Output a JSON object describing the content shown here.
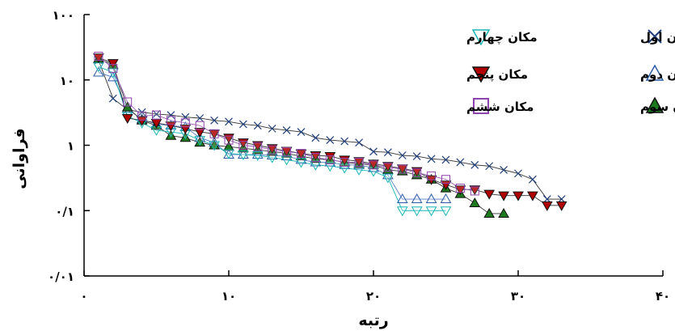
{
  "chart_data": {
    "type": "scatter",
    "title": "",
    "xlabel": "رتبه",
    "ylabel": "فراوانی",
    "xscale": "linear",
    "yscale": "log",
    "xlim": [
      0,
      40
    ],
    "ylim": [
      0.01,
      100
    ],
    "xticks": [
      0,
      10,
      20,
      30,
      40
    ],
    "xtick_labels": [
      "۰",
      "۱۰",
      "۲۰",
      "۳۰",
      "۴۰"
    ],
    "yticks": [
      0.01,
      0.1,
      1,
      10,
      100
    ],
    "ytick_labels": [
      "۰/۰۱",
      "۰/۱",
      "۱",
      "۱۰",
      "۱۰۰"
    ],
    "grid": false,
    "legend_position": "top-right",
    "series": [
      {
        "name": "مکان اول",
        "marker": "x",
        "color": "#1f3f7a",
        "line_color": "#333333",
        "points": [
          [
            1,
            20
          ],
          [
            2,
            5.2
          ],
          [
            3,
            3.5
          ],
          [
            4,
            3.2
          ],
          [
            5,
            3.0
          ],
          [
            6,
            2.9
          ],
          [
            7,
            2.7
          ],
          [
            8,
            2.6
          ],
          [
            9,
            2.4
          ],
          [
            10,
            2.3
          ],
          [
            11,
            2.1
          ],
          [
            12,
            2.0
          ],
          [
            13,
            1.8
          ],
          [
            14,
            1.7
          ],
          [
            15,
            1.6
          ],
          [
            16,
            1.3
          ],
          [
            17,
            1.2
          ],
          [
            18,
            1.15
          ],
          [
            19,
            1.1
          ],
          [
            20,
            0.8
          ],
          [
            21,
            0.78
          ],
          [
            22,
            0.7
          ],
          [
            23,
            0.68
          ],
          [
            24,
            0.62
          ],
          [
            25,
            0.6
          ],
          [
            26,
            0.55
          ],
          [
            27,
            0.5
          ],
          [
            28,
            0.48
          ],
          [
            29,
            0.42
          ],
          [
            30,
            0.37
          ],
          [
            31,
            0.3
          ],
          [
            32,
            0.15
          ],
          [
            33,
            0.15
          ]
        ]
      },
      {
        "name": "مکان دوم",
        "marker": "triangle-up-open",
        "color": "#2a5caa",
        "line_color": "#5b7fc4",
        "points": [
          [
            1,
            13
          ],
          [
            2,
            11
          ],
          [
            3,
            3.6
          ],
          [
            4,
            2.5
          ],
          [
            5,
            2.1
          ],
          [
            6,
            2.0
          ],
          [
            7,
            1.9
          ],
          [
            8,
            1.3
          ],
          [
            9,
            1.1
          ],
          [
            10,
            0.72
          ],
          [
            11,
            0.72
          ],
          [
            12,
            0.72
          ],
          [
            13,
            0.7
          ],
          [
            14,
            0.68
          ],
          [
            15,
            0.6
          ],
          [
            16,
            0.55
          ],
          [
            17,
            0.55
          ],
          [
            18,
            0.5
          ],
          [
            19,
            0.5
          ],
          [
            20,
            0.45
          ],
          [
            21,
            0.35
          ],
          [
            22,
            0.15
          ],
          [
            23,
            0.15
          ],
          [
            24,
            0.15
          ],
          [
            25,
            0.15
          ]
        ]
      },
      {
        "name": "مکان سوم",
        "marker": "triangle-up-filled",
        "color": "#1e7a1e",
        "line_color": "#333333",
        "points": [
          [
            1,
            21
          ],
          [
            2,
            17
          ],
          [
            3,
            3.8
          ],
          [
            4,
            2.4
          ],
          [
            5,
            2.0
          ],
          [
            6,
            1.4
          ],
          [
            7,
            1.3
          ],
          [
            8,
            1.1
          ],
          [
            9,
            1.0
          ],
          [
            10,
            0.95
          ],
          [
            11,
            0.9
          ],
          [
            12,
            0.85
          ],
          [
            13,
            0.8
          ],
          [
            14,
            0.75
          ],
          [
            15,
            0.68
          ],
          [
            16,
            0.62
          ],
          [
            17,
            0.6
          ],
          [
            18,
            0.55
          ],
          [
            19,
            0.52
          ],
          [
            20,
            0.5
          ],
          [
            21,
            0.42
          ],
          [
            22,
            0.4
          ],
          [
            23,
            0.35
          ],
          [
            24,
            0.3
          ],
          [
            25,
            0.22
          ],
          [
            26,
            0.18
          ],
          [
            27,
            0.13
          ],
          [
            28,
            0.09
          ],
          [
            29,
            0.09
          ]
        ]
      },
      {
        "name": "مکان چهارم",
        "marker": "triangle-down-open",
        "color": "#1ab5b5",
        "line_color": "#1ab5b5",
        "points": [
          [
            1,
            16
          ],
          [
            2,
            13
          ],
          [
            3,
            2.8
          ],
          [
            4,
            2.2
          ],
          [
            5,
            1.7
          ],
          [
            6,
            1.6
          ],
          [
            7,
            1.5
          ],
          [
            8,
            1.2
          ],
          [
            9,
            1.0
          ],
          [
            10,
            0.75
          ],
          [
            11,
            0.72
          ],
          [
            12,
            0.7
          ],
          [
            13,
            0.65
          ],
          [
            14,
            0.6
          ],
          [
            15,
            0.55
          ],
          [
            16,
            0.5
          ],
          [
            17,
            0.48
          ],
          [
            18,
            0.45
          ],
          [
            19,
            0.42
          ],
          [
            20,
            0.4
          ],
          [
            21,
            0.32
          ],
          [
            22,
            0.1
          ],
          [
            23,
            0.1
          ],
          [
            24,
            0.1
          ],
          [
            25,
            0.1
          ]
        ]
      },
      {
        "name": "مکان پنجم",
        "marker": "triangle-down-filled",
        "color": "#b00000",
        "line_color": "#333333",
        "points": [
          [
            1,
            22
          ],
          [
            2,
            18
          ],
          [
            3,
            2.6
          ],
          [
            4,
            2.4
          ],
          [
            5,
            2.2
          ],
          [
            6,
            2.0
          ],
          [
            7,
            1.8
          ],
          [
            8,
            1.6
          ],
          [
            9,
            1.5
          ],
          [
            10,
            1.3
          ],
          [
            11,
            1.1
          ],
          [
            12,
            1.0
          ],
          [
            13,
            0.9
          ],
          [
            14,
            0.82
          ],
          [
            15,
            0.75
          ],
          [
            16,
            0.7
          ],
          [
            17,
            0.68
          ],
          [
            18,
            0.6
          ],
          [
            19,
            0.57
          ],
          [
            20,
            0.52
          ],
          [
            21,
            0.48
          ],
          [
            22,
            0.44
          ],
          [
            23,
            0.4
          ],
          [
            24,
            0.3
          ],
          [
            25,
            0.25
          ],
          [
            26,
            0.21
          ],
          [
            27,
            0.21
          ],
          [
            28,
            0.18
          ],
          [
            29,
            0.17
          ],
          [
            30,
            0.17
          ],
          [
            31,
            0.17
          ],
          [
            32,
            0.12
          ],
          [
            33,
            0.12
          ]
        ]
      },
      {
        "name": "مکان ششم",
        "marker": "square-open",
        "color": "#8e44ad",
        "line_color": "#9b59b6",
        "points": [
          [
            1,
            23
          ],
          [
            2,
            15
          ],
          [
            3,
            4.6
          ],
          [
            4,
            2.8
          ],
          [
            5,
            2.9
          ],
          [
            6,
            2.4
          ],
          [
            7,
            2.2
          ],
          [
            8,
            2.0
          ],
          [
            9,
            1.5
          ],
          [
            10,
            1.2
          ],
          [
            11,
            1.0
          ],
          [
            12,
            0.95
          ],
          [
            13,
            0.85
          ],
          [
            14,
            0.8
          ],
          [
            15,
            0.75
          ],
          [
            16,
            0.65
          ],
          [
            17,
            0.6
          ],
          [
            18,
            0.55
          ],
          [
            19,
            0.55
          ],
          [
            20,
            0.5
          ],
          [
            21,
            0.46
          ],
          [
            22,
            0.43
          ],
          [
            23,
            0.38
          ],
          [
            24,
            0.34
          ],
          [
            25,
            0.3
          ],
          [
            26,
            0.22
          ],
          [
            27,
            0.2
          ]
        ]
      }
    ],
    "legend_layout": [
      [
        "مکان اول",
        "مکان چهارم"
      ],
      [
        "مکان دوم",
        "مکان پنجم"
      ],
      [
        "مکان سوم",
        "مکان ششم"
      ]
    ]
  }
}
